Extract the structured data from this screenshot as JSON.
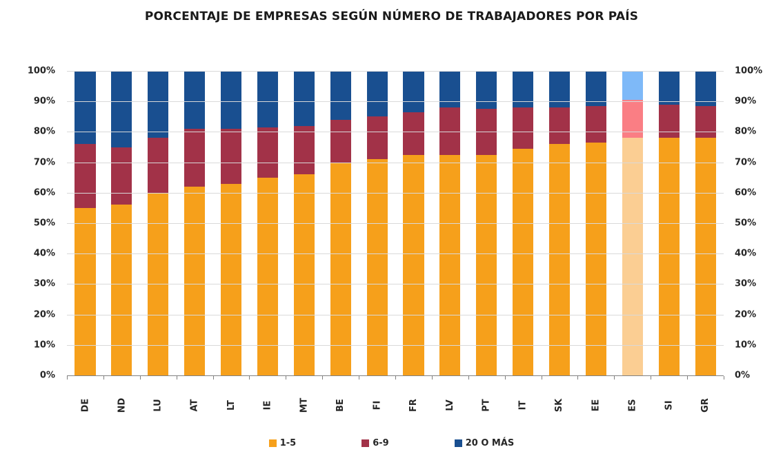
{
  "chart_data": {
    "type": "bar",
    "stacked": true,
    "percent_stacked": true,
    "title": "PORCENTAJE DE EMPRESAS SEGÚN NÚMERO DE TRABAJADORES POR PAÍS",
    "categories": [
      "DE",
      "ND",
      "LU",
      "AT",
      "LT",
      "IE",
      "MT",
      "BE",
      "FI",
      "FR",
      "LV",
      "PT",
      "IT",
      "SK",
      "EE",
      "ES",
      "SI",
      "GR"
    ],
    "series": [
      {
        "name": "1-5",
        "color": "#F6A01B",
        "values": [
          55,
          56,
          60,
          62,
          63,
          65,
          66,
          70,
          71,
          72.5,
          72.5,
          72.5,
          74.5,
          76,
          76.5,
          78,
          78,
          78
        ]
      },
      {
        "name": "6-9",
        "color": "#A23248",
        "values": [
          21,
          19,
          18,
          19,
          18,
          16.5,
          16,
          14,
          14,
          14,
          15.5,
          15,
          13.5,
          12,
          12,
          12.5,
          11,
          10.5
        ]
      },
      {
        "name": "20 O MÁS",
        "color": "#194F90",
        "values": [
          24,
          25,
          22,
          19,
          19,
          18.5,
          18,
          16,
          15,
          13.5,
          12,
          12.5,
          12,
          12,
          11.5,
          9.5,
          11,
          11.5
        ]
      }
    ],
    "highlight": {
      "category": "ES",
      "colors": [
        "#FBCE93",
        "#FA7E84",
        "#7EB9F8"
      ]
    },
    "ylim": [
      0,
      100
    ],
    "yticks": [
      "0%",
      "10%",
      "20%",
      "30%",
      "40%",
      "50%",
      "60%",
      "70%",
      "80%",
      "90%",
      "100%"
    ],
    "y_axis_sides": [
      "left",
      "right"
    ],
    "grid": true,
    "gridline_color": "#D9D9D9",
    "axis_color": "#808080",
    "legend_position": "bottom"
  }
}
